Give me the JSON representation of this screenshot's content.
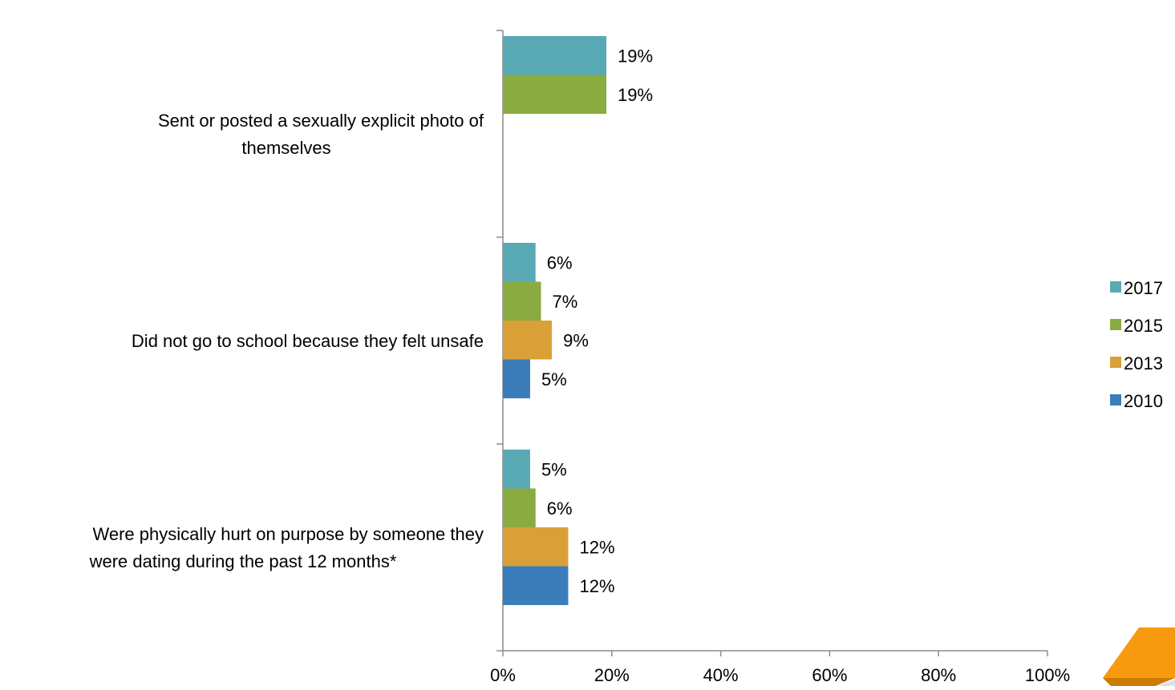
{
  "chart_data": {
    "type": "bar",
    "orientation": "horizontal",
    "title": "",
    "xlabel": "",
    "ylabel": "",
    "xlim": [
      0,
      100
    ],
    "x_ticks": [
      "0%",
      "20%",
      "40%",
      "60%",
      "80%",
      "100%"
    ],
    "categories": [
      "Sent or posted a sexually explicit photo of themselves",
      "Did not go to school because they felt unsafe",
      "Were physically hurt on purpose by someone they were dating during the past 12 months*"
    ],
    "category_lines": [
      [
        "Sent or posted a sexually explicit photo of",
        "themselves"
      ],
      [
        "Did not go to school because they felt unsafe"
      ],
      [
        "Were physically hurt on purpose by someone they",
        "were dating during the past 12 months*"
      ]
    ],
    "series": [
      {
        "name": "2017",
        "color": "#59a9b5",
        "values": [
          19,
          6,
          5
        ],
        "labels": [
          "19%",
          "6%",
          "5%"
        ]
      },
      {
        "name": "2015",
        "color": "#8aab41",
        "values": [
          19,
          7,
          6
        ],
        "labels": [
          "19%",
          "7%",
          "6%"
        ]
      },
      {
        "name": "2013",
        "color": "#d9a038",
        "values": [
          null,
          9,
          12
        ],
        "labels": [
          null,
          "9%",
          "12%"
        ]
      },
      {
        "name": "2010",
        "color": "#3a7dba",
        "values": [
          null,
          5,
          12
        ],
        "labels": [
          null,
          "5%",
          "12%"
        ]
      }
    ],
    "legend_position": "right",
    "grid": false,
    "decoration_colors": [
      "#f79a0f",
      "#cc7a00",
      "#dde3ea"
    ]
  }
}
